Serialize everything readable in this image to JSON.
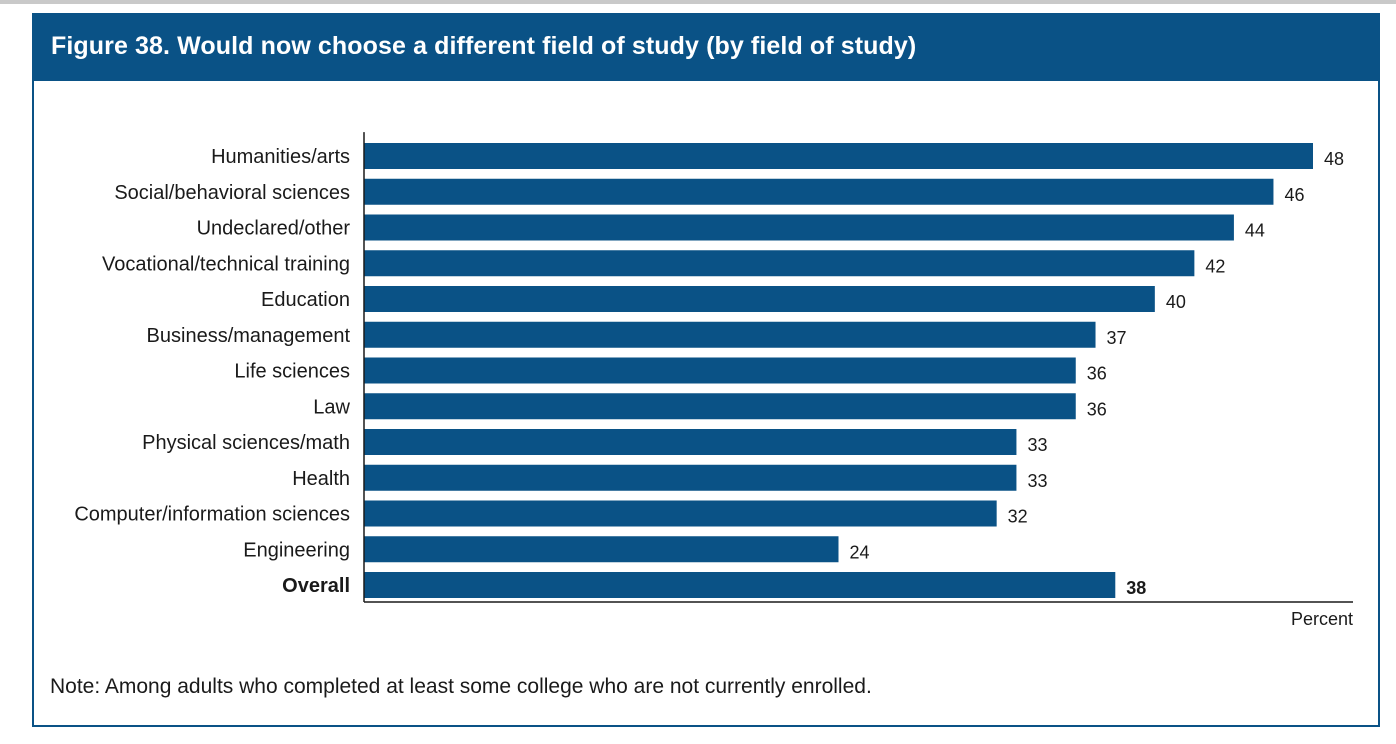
{
  "figure": {
    "title": "Figure 38. Would now choose a different field of study (by field of study)",
    "note": "Note: Among adults who completed at least some college who are not currently enrolled.",
    "bar_color": "#0a5286",
    "header_color": "#0a5286"
  },
  "chart_data": {
    "type": "bar",
    "orientation": "horizontal",
    "title": "Figure 38. Would now choose a different field of study (by field of study)",
    "xlabel": "Percent",
    "ylabel": "",
    "xlim": [
      0,
      48
    ],
    "grid": false,
    "categories": [
      "Humanities/arts",
      "Social/behavioral sciences",
      "Undeclared/other",
      "Vocational/technical training",
      "Education",
      "Business/management",
      "Life sciences",
      "Law",
      "Physical sciences/math",
      "Health",
      "Computer/information sciences",
      "Engineering",
      "Overall"
    ],
    "values": [
      48,
      46,
      44,
      42,
      40,
      37,
      36,
      36,
      33,
      33,
      32,
      24,
      38
    ],
    "emphasized_categories": [
      "Overall"
    ]
  }
}
